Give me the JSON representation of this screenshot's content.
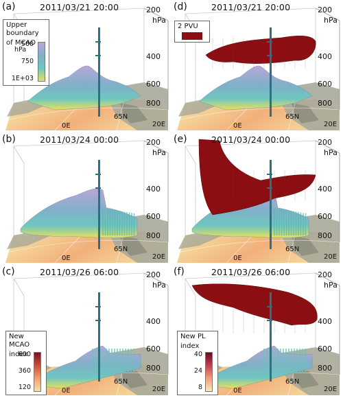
{
  "panels": [
    {
      "label": "(a)",
      "timestamp": "2011/03/21 20:00",
      "pressure_axis": {
        "ticks": [
          "200",
          "400",
          "600",
          "800"
        ],
        "unit": "hPa"
      },
      "geo_labels": [
        "0E",
        "65N",
        "20E"
      ],
      "legend": {
        "title_line1": "Upper boundary",
        "title_line2": "of MCAO",
        "unit": "hPa",
        "ticks": [
          "500",
          "750",
          "1E+03"
        ]
      }
    },
    {
      "label": "(b)",
      "timestamp": "2011/03/24 00:00",
      "pressure_axis": {
        "ticks": [
          "200",
          "400",
          "600",
          "800"
        ],
        "unit": "hPa"
      },
      "geo_labels": [
        "0E",
        "65N",
        "20E"
      ]
    },
    {
      "label": "(c)",
      "timestamp": "2011/03/26 06:00",
      "pressure_axis": {
        "ticks": [
          "200",
          "400",
          "600",
          "800"
        ],
        "unit": "hPa"
      },
      "geo_labels": [
        "0E",
        "65N",
        "20E"
      ],
      "legend": {
        "title_line1": "New MCAO",
        "title_line2": "index",
        "ticks": [
          "600",
          "360",
          "120"
        ]
      }
    },
    {
      "label": "(d)",
      "timestamp": "2011/03/21 20:00",
      "pressure_axis": {
        "ticks": [
          "200",
          "400",
          "600",
          "800"
        ],
        "unit": "hPa"
      },
      "geo_labels": [
        "0E",
        "65N",
        "20E"
      ],
      "legend": {
        "swatch_label": "2 PVU",
        "swatch_color": "#8b0f12"
      }
    },
    {
      "label": "(e)",
      "timestamp": "2011/03/24 00:00",
      "pressure_axis": {
        "ticks": [
          "200",
          "400",
          "600",
          "800"
        ],
        "unit": "hPa"
      },
      "geo_labels": [
        "0E",
        "65N",
        "20E"
      ]
    },
    {
      "label": "(f)",
      "timestamp": "2011/03/26 06:00",
      "pressure_axis": {
        "ticks": [
          "200",
          "400",
          "600",
          "800"
        ],
        "unit": "hPa"
      },
      "geo_labels": [
        "0E",
        "65N",
        "20E"
      ],
      "legend": {
        "title_line1": "New PL",
        "title_line2": "index",
        "ticks": [
          "40",
          "24",
          "8"
        ]
      }
    }
  ],
  "colors": {
    "pvu_surface": "#8b0f12",
    "mcao_high": "#b9a6d8",
    "mcao_mid": "#6fc6c0",
    "mcao_low": "#e8e05a",
    "ocean_warm": "#f2b07a",
    "land": "#a8a89a",
    "pole": "#2f6f86"
  }
}
